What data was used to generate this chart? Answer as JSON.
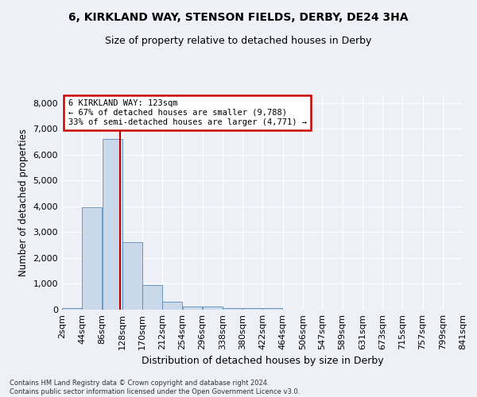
{
  "title_line1": "6, KIRKLAND WAY, STENSON FIELDS, DERBY, DE24 3HA",
  "title_line2": "Size of property relative to detached houses in Derby",
  "xlabel": "Distribution of detached houses by size in Derby",
  "ylabel": "Number of detached properties",
  "bar_color": "#c9d9ea",
  "bar_edge_color": "#5a8ab8",
  "bins": [
    2,
    44,
    86,
    128,
    170,
    212,
    254,
    296,
    338,
    380,
    422,
    464,
    506,
    547,
    589,
    631,
    673,
    715,
    757,
    799,
    841
  ],
  "bin_labels": [
    "2sqm",
    "44sqm",
    "86sqm",
    "128sqm",
    "170sqm",
    "212sqm",
    "254sqm",
    "296sqm",
    "338sqm",
    "380sqm",
    "422sqm",
    "464sqm",
    "506sqm",
    "547sqm",
    "589sqm",
    "631sqm",
    "673sqm",
    "715sqm",
    "757sqm",
    "799sqm",
    "841sqm"
  ],
  "values": [
    65,
    3980,
    6600,
    2620,
    960,
    320,
    130,
    120,
    75,
    60,
    55,
    0,
    0,
    0,
    0,
    0,
    0,
    0,
    0,
    0
  ],
  "vline_x": 123,
  "annotation_line1": "6 KIRKLAND WAY: 123sqm",
  "annotation_line2": "← 67% of detached houses are smaller (9,788)",
  "annotation_line3": "33% of semi-detached houses are larger (4,771) →",
  "annotation_box_facecolor": "#ffffff",
  "annotation_box_edgecolor": "#cc0000",
  "vline_color": "#bb0000",
  "ylim_max": 8300,
  "yticks": [
    0,
    1000,
    2000,
    3000,
    4000,
    5000,
    6000,
    7000,
    8000
  ],
  "footer_line1": "Contains HM Land Registry data © Crown copyright and database right 2024.",
  "footer_line2": "Contains public sector information licensed under the Open Government Licence v3.0.",
  "bg_color": "#edf1f7",
  "grid_color": "#ffffff"
}
